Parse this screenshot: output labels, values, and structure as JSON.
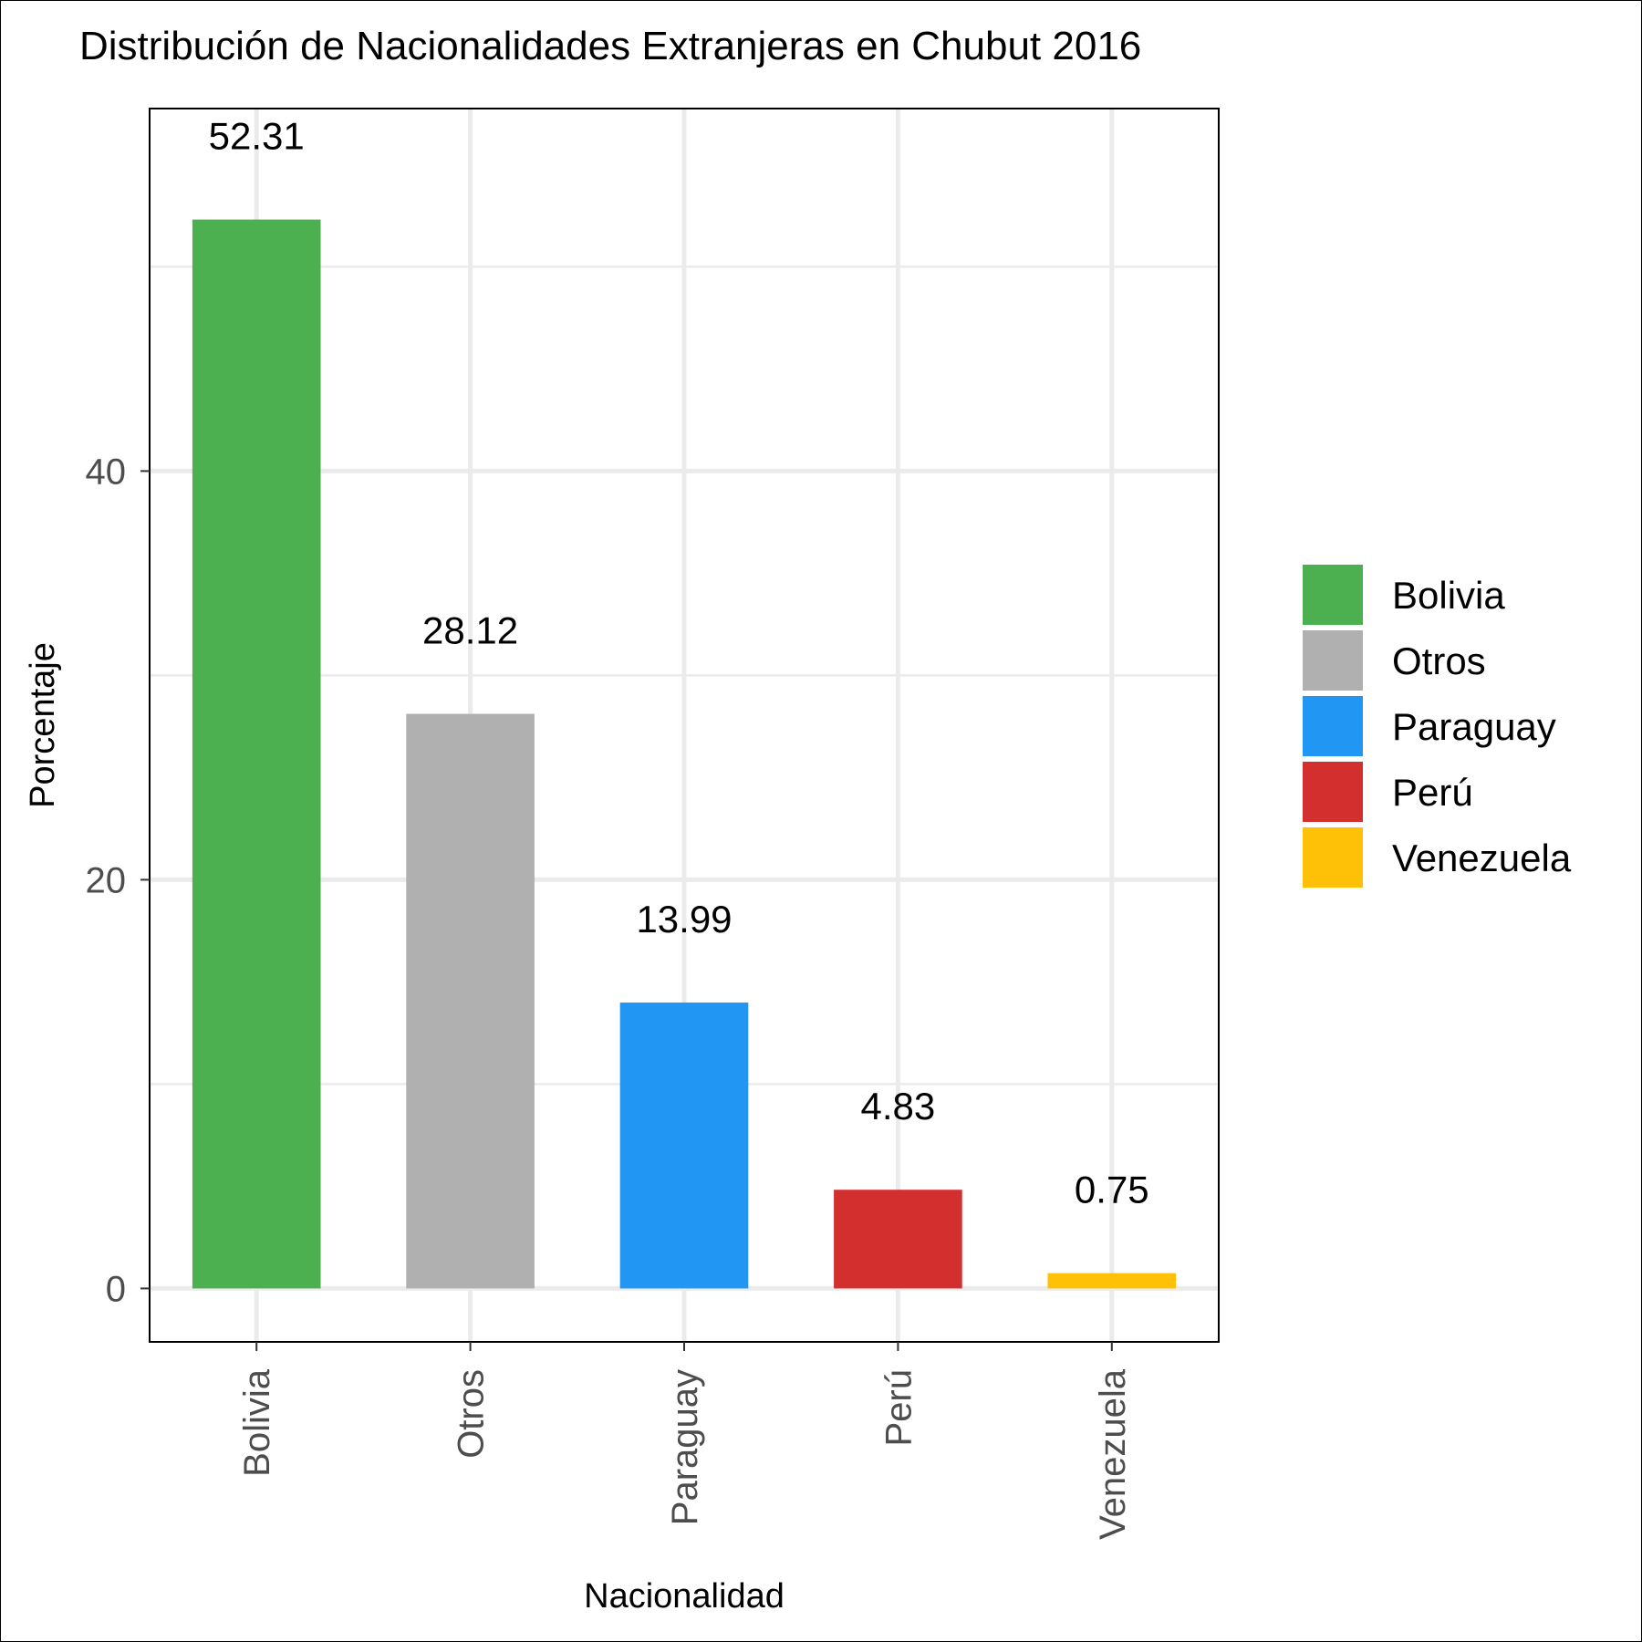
{
  "chart_data": {
    "type": "bar",
    "title": "Distribución de Nacionalidades Extranjeras en Chubut 2016",
    "xlabel": "Nacionalidad",
    "ylabel": "Porcentaje",
    "categories": [
      "Bolivia",
      "Otros",
      "Paraguay",
      "Perú",
      "Venezuela"
    ],
    "values": [
      52.31,
      28.12,
      13.99,
      4.83,
      0.75
    ],
    "value_labels": [
      "52.31",
      "28.12",
      "13.99",
      "4.83",
      "0.75"
    ],
    "colors": [
      "#4caf50",
      "#b0b0b0",
      "#2196f3",
      "#d32f2f",
      "#ffc107"
    ],
    "ylim": [
      -2.615,
      57.74
    ],
    "yticks": [
      0,
      20,
      40
    ],
    "yticks_minor": [
      10,
      30,
      50
    ],
    "grid": true,
    "legend": {
      "position": "right",
      "entries": [
        "Bolivia",
        "Otros",
        "Paraguay",
        "Perú",
        "Venezuela"
      ]
    }
  }
}
